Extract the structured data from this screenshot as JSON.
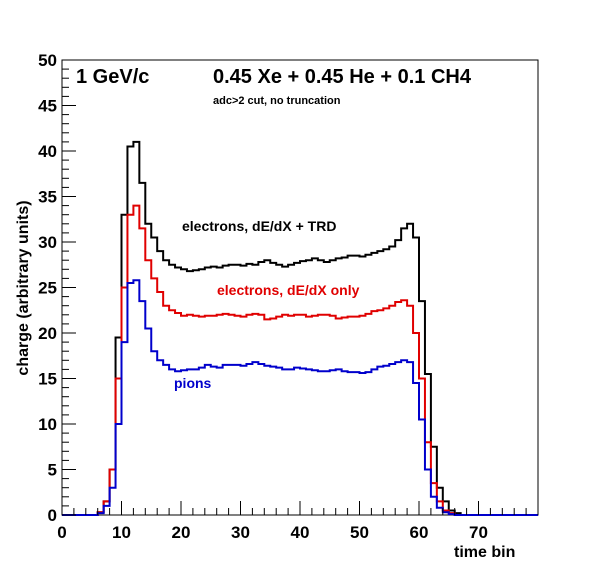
{
  "chart_data": {
    "type": "line",
    "step": true,
    "title_left": "1 GeV/c",
    "title_right": "0.45 Xe + 0.45 He + 0.1 CH4",
    "subtitle": "adc>2 cut, no truncation",
    "xlabel": "time bin",
    "ylabel": "charge (arbitrary units)",
    "xlim": [
      0,
      80
    ],
    "ylim": [
      0,
      50
    ],
    "x_ticks": [
      0,
      10,
      20,
      30,
      40,
      50,
      60,
      70
    ],
    "y_ticks": [
      0,
      5,
      10,
      15,
      20,
      25,
      30,
      35,
      40,
      45,
      50
    ],
    "bin_width": 1,
    "series": [
      {
        "name": "electrons, dE/dX + TRD",
        "color": "#000000",
        "values": [
          0,
          0,
          0,
          0,
          0,
          0,
          0.3,
          1.5,
          5.0,
          19.5,
          33.0,
          40.5,
          41.0,
          36.5,
          32.0,
          30.5,
          29.0,
          28.0,
          27.5,
          27.2,
          27.0,
          26.8,
          26.9,
          27.0,
          27.2,
          27.3,
          27.2,
          27.4,
          27.5,
          27.5,
          27.4,
          27.6,
          27.5,
          27.8,
          28.0,
          27.7,
          27.5,
          27.3,
          27.5,
          27.7,
          27.9,
          28.0,
          28.2,
          28.0,
          27.8,
          28.0,
          28.2,
          28.3,
          28.5,
          28.5,
          28.4,
          28.6,
          28.8,
          29.0,
          29.2,
          29.5,
          30.2,
          31.5,
          32.0,
          30.5,
          23.5,
          15.5,
          7.5,
          3.0,
          1.5,
          0.5,
          0.2,
          0,
          0,
          0,
          0,
          0,
          0,
          0,
          0,
          0,
          0,
          0,
          0,
          0
        ]
      },
      {
        "name": "electrons, dE/dX only",
        "color": "#e00000",
        "values": [
          0,
          0,
          0,
          0,
          0,
          0,
          0.3,
          1.5,
          5.0,
          15.0,
          25.0,
          33.0,
          34.0,
          31.5,
          28.0,
          26.0,
          24.5,
          23.0,
          22.5,
          22.2,
          21.9,
          22.0,
          21.9,
          21.8,
          21.9,
          21.9,
          22.0,
          22.1,
          22.0,
          21.9,
          21.8,
          22.0,
          22.1,
          22.0,
          21.5,
          21.6,
          21.8,
          22.0,
          21.9,
          22.0,
          22.0,
          21.8,
          21.9,
          22.0,
          22.0,
          21.9,
          21.6,
          21.7,
          21.8,
          21.8,
          21.9,
          22.1,
          22.4,
          22.5,
          22.7,
          23.0,
          23.4,
          23.6,
          23.0,
          20.0,
          15.0,
          8.0,
          3.5,
          1.5,
          0.5,
          0.2,
          0,
          0,
          0,
          0,
          0,
          0,
          0,
          0,
          0,
          0,
          0,
          0,
          0,
          0
        ]
      },
      {
        "name": "pions",
        "color": "#0000cc",
        "values": [
          0,
          0,
          0,
          0,
          0,
          0,
          0.2,
          1.0,
          3.0,
          10.0,
          19.0,
          25.5,
          25.8,
          23.5,
          20.5,
          18.0,
          17.0,
          16.5,
          16.0,
          15.8,
          15.9,
          16.0,
          16.0,
          16.2,
          16.5,
          16.3,
          16.2,
          16.5,
          16.5,
          16.5,
          16.4,
          16.6,
          16.8,
          16.6,
          16.4,
          16.3,
          16.2,
          16.0,
          16.0,
          16.2,
          16.1,
          16.0,
          15.9,
          15.8,
          15.8,
          15.9,
          16.0,
          15.8,
          15.7,
          15.7,
          15.6,
          15.7,
          16.0,
          16.3,
          16.4,
          16.6,
          16.8,
          17.0,
          16.8,
          14.5,
          10.5,
          5.0,
          2.0,
          0.8,
          0.3,
          0.1,
          0,
          0,
          0,
          0,
          0,
          0,
          0,
          0,
          0,
          0,
          0,
          0,
          0,
          0
        ]
      }
    ]
  }
}
